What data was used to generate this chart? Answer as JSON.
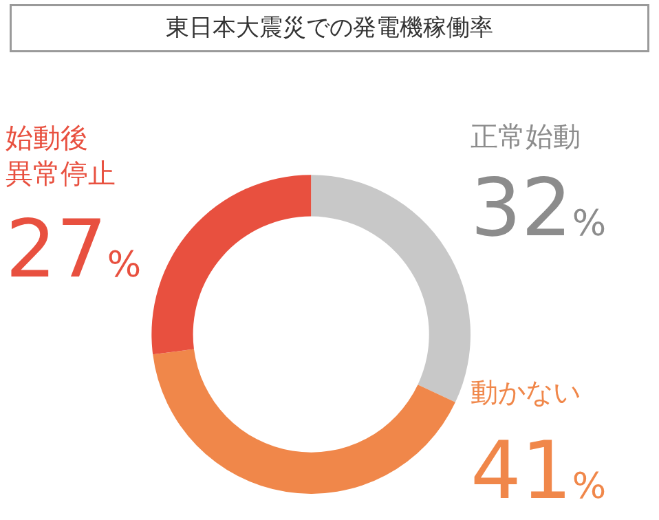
{
  "chart_data": {
    "type": "donut",
    "title": "東日本大震災での発電機稼働率",
    "categories": [
      "正常始動",
      "動かない",
      "始動後異常停止"
    ],
    "values": [
      32,
      41,
      27
    ],
    "colors": [
      "#c8c8c8",
      "#f0874a",
      "#e8503f"
    ],
    "value_labels": [
      "32%",
      "41%",
      "27%"
    ],
    "legend": false
  }
}
